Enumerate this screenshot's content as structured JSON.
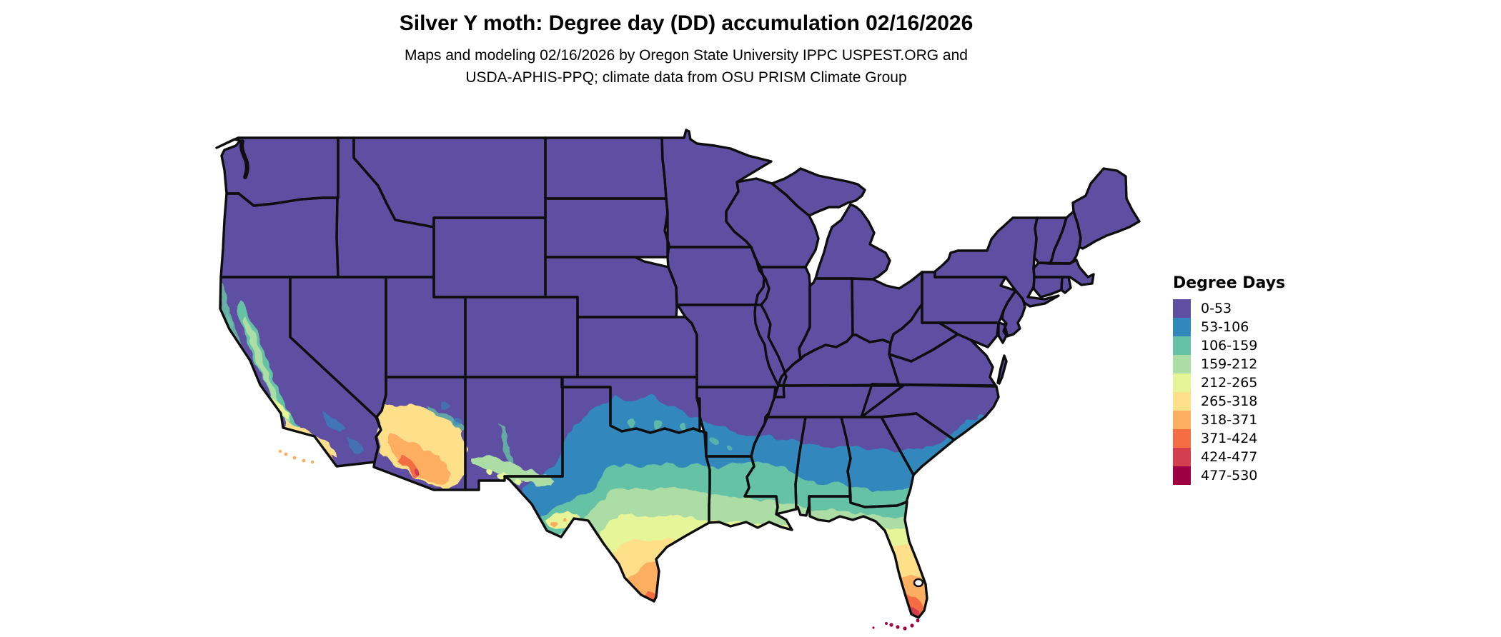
{
  "title": "Silver Y moth: Degree day (DD) accumulation 02/16/2026",
  "subtitle": {
    "line1": "Maps and modeling 02/16/2026 by Oregon State University IPPC USPEST.ORG and",
    "line2": "USDA-APHIS-PPQ; climate data from OSU PRISM Climate Group"
  },
  "legend": {
    "title": "Degree Days",
    "items": [
      {
        "label": "0-53",
        "color": "#5e4fa2"
      },
      {
        "label": "53-106",
        "color": "#3288bd"
      },
      {
        "label": "106-159",
        "color": "#66c2a5"
      },
      {
        "label": "159-212",
        "color": "#abdda4"
      },
      {
        "label": "212-265",
        "color": "#e6f598"
      },
      {
        "label": "265-318",
        "color": "#fee08b"
      },
      {
        "label": "318-371",
        "color": "#fdae61"
      },
      {
        "label": "371-424",
        "color": "#f46d43"
      },
      {
        "label": "424-477",
        "color": "#d53e4f"
      },
      {
        "label": "477-530",
        "color": "#9e0142"
      }
    ]
  },
  "map": {
    "border_color": "#0e0e0e",
    "water_color": "#ffffff"
  }
}
